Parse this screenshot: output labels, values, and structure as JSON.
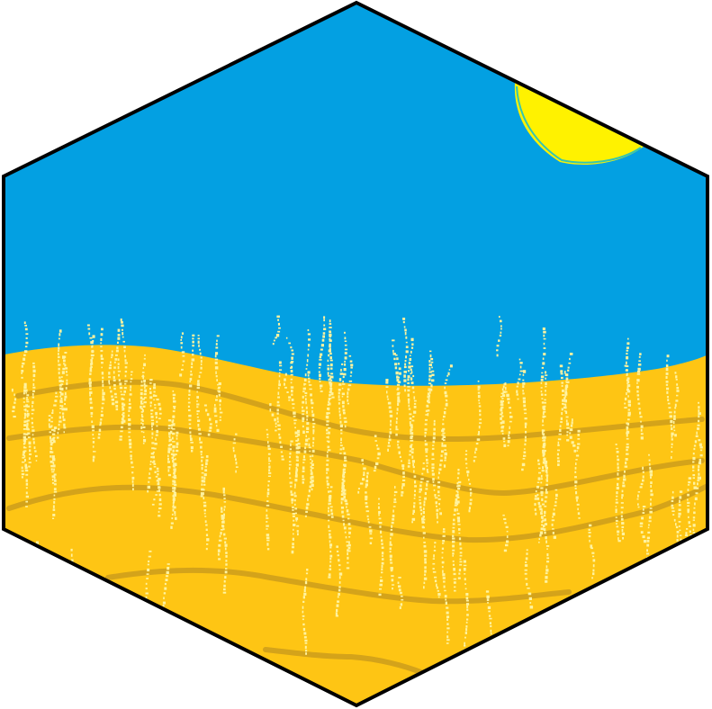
{
  "scene": {
    "subject": "hexagon-tile-desert",
    "colors": {
      "background": "#ffffff",
      "sky": "#03a0e2",
      "sand": "#fec514",
      "dune_line": "#d4a31a",
      "sparkle": "#fff3a0",
      "sun": "#fff200",
      "sun_rim": "#35c5b0",
      "outline": "#000000"
    }
  }
}
